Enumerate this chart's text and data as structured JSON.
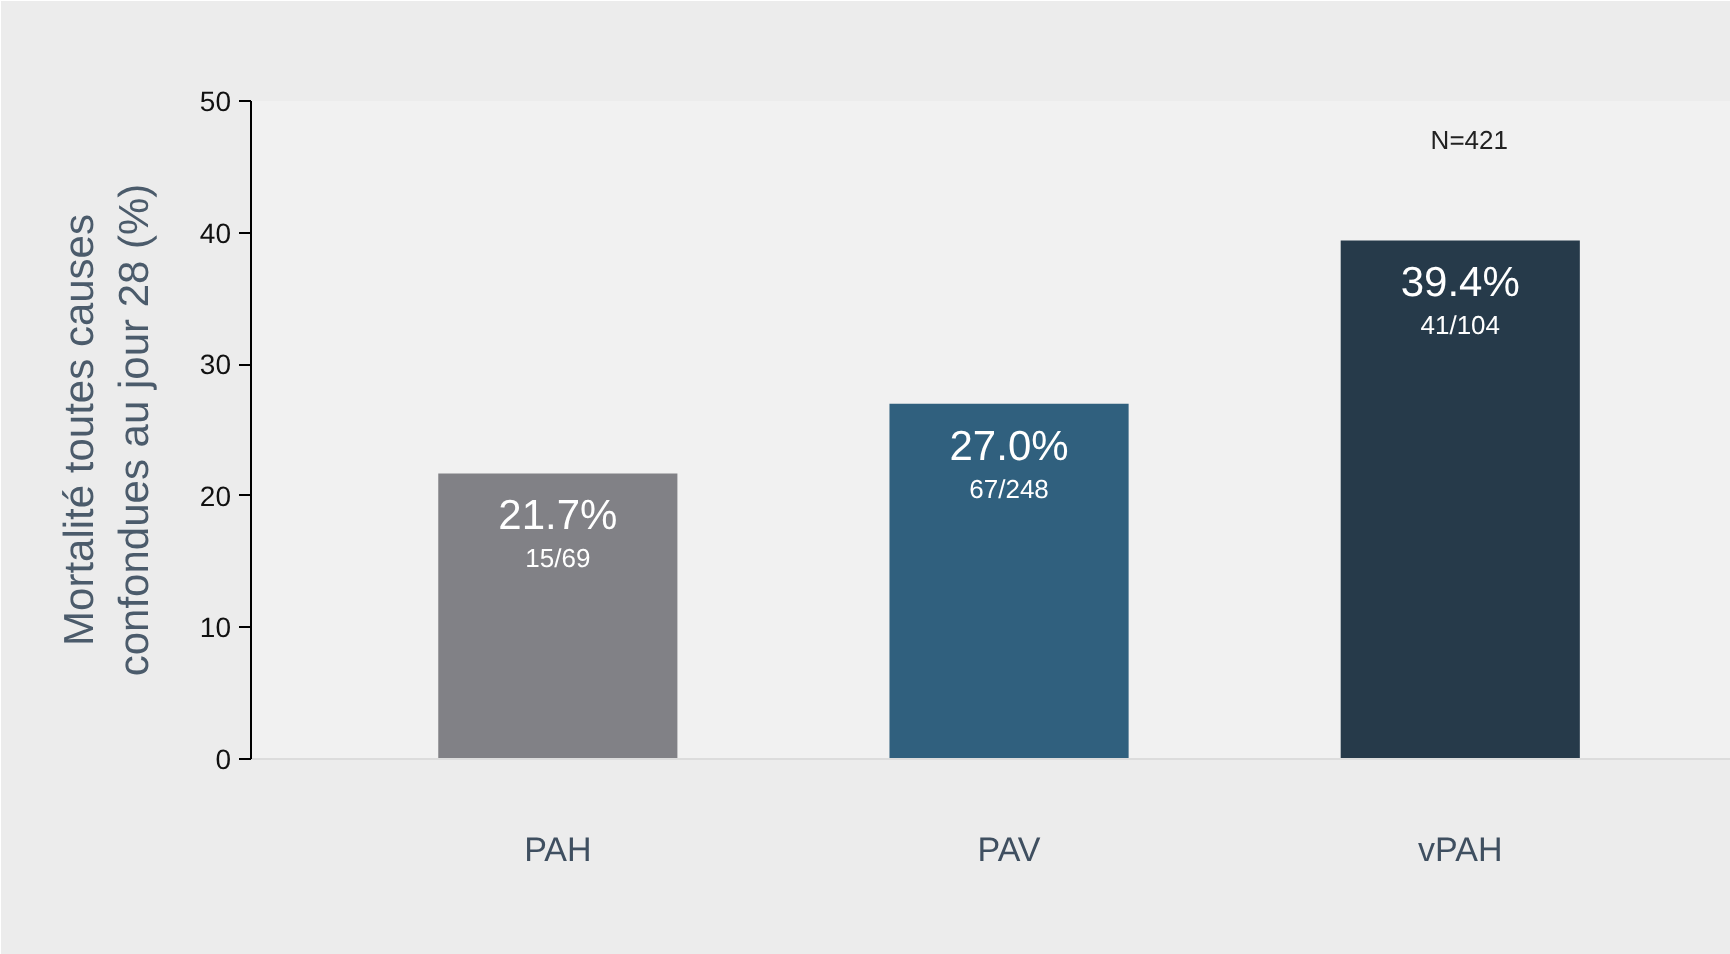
{
  "chart_data": {
    "type": "bar",
    "ylabel": "Mortalité toutes causes confondues au jour 28 (%)",
    "categories": [
      "PAH",
      "PAV",
      "vPAH"
    ],
    "values": [
      21.7,
      27.0,
      39.4
    ],
    "colors": [
      "#818186",
      "#30607e",
      "#263a4a"
    ],
    "ylim": [
      0,
      50
    ],
    "yticks": [
      0,
      10,
      20,
      30,
      40,
      50
    ],
    "value_labels": [
      "21.7%",
      "27.0%",
      "39.4%"
    ],
    "annotations": [
      {
        "text": "15/69",
        "x": "PAH",
        "y": 21.7
      },
      {
        "text": "67/248",
        "x": "PAV",
        "y": 27.0
      },
      {
        "text": "41/104",
        "x": "vPAH",
        "y": 39.4
      },
      "N=421"
    ]
  }
}
